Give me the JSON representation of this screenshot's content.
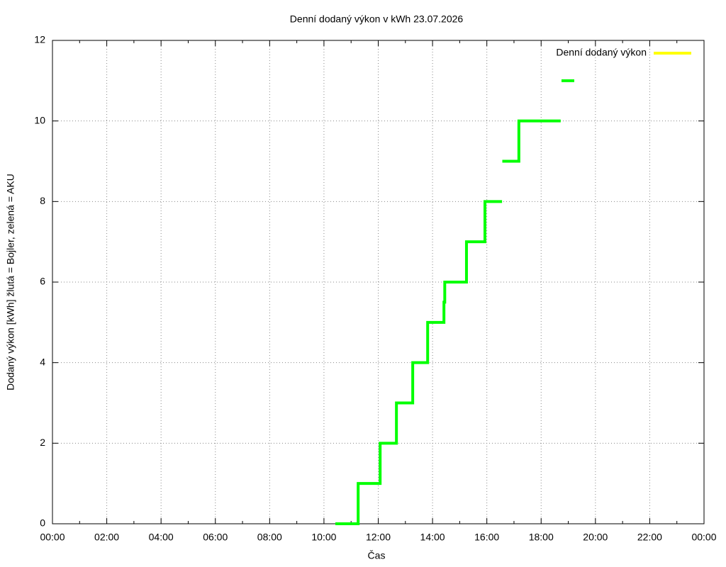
{
  "chart_data": {
    "type": "line",
    "step": true,
    "title": "Denní dodaný výkon v kWh 23.07.2026",
    "x_label": "Čas",
    "y_label": "Dodaný výkon [kWh]  žlutá = Bojler, zelená = AKU",
    "legend": {
      "label": "Denní dodaný výkon",
      "color": "#ffff00",
      "position": "top-right"
    },
    "grid": true,
    "xlim": [
      0,
      24
    ],
    "xticks": [
      {
        "value": 0,
        "label": "00:00"
      },
      {
        "value": 2,
        "label": "02:00"
      },
      {
        "value": 4,
        "label": "04:00"
      },
      {
        "value": 6,
        "label": "06:00"
      },
      {
        "value": 8,
        "label": "08:00"
      },
      {
        "value": 10,
        "label": "10:00"
      },
      {
        "value": 12,
        "label": "12:00"
      },
      {
        "value": 14,
        "label": "14:00"
      },
      {
        "value": 16,
        "label": "16:00"
      },
      {
        "value": 18,
        "label": "18:00"
      },
      {
        "value": 20,
        "label": "20:00"
      },
      {
        "value": 22,
        "label": "22:00"
      },
      {
        "value": 24,
        "label": "00:00"
      }
    ],
    "ylim": [
      0,
      12
    ],
    "yticks": [
      0,
      2,
      4,
      6,
      8,
      10,
      12
    ],
    "series": [
      {
        "color": "#00ff00",
        "x": [
          10.42,
          11.26,
          12.07,
          12.67,
          13.27,
          13.82,
          14.42,
          14.45,
          15.25,
          15.93,
          16.56,
          16.58,
          16.57,
          17.18,
          18.72,
          18.74,
          18.75,
          19.22
        ],
        "values": [
          0,
          1,
          2,
          3,
          4,
          5,
          5.5,
          6,
          7,
          8,
          8,
          null,
          9,
          10,
          10,
          null,
          11,
          11
        ]
      }
    ]
  }
}
